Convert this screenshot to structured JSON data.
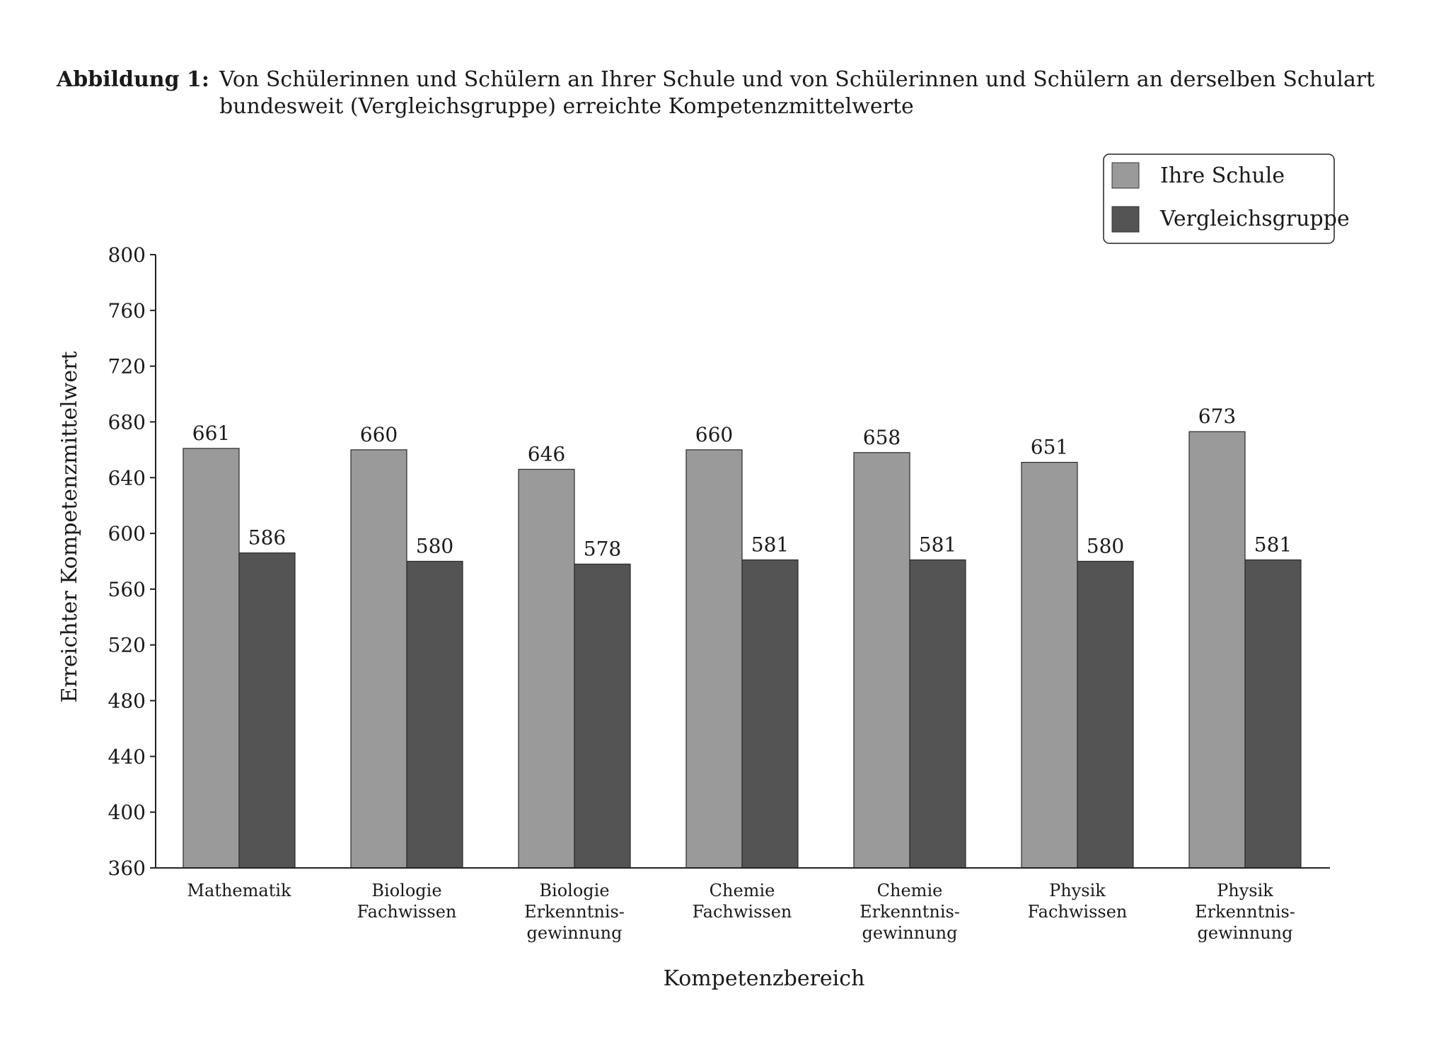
{
  "caption": {
    "label": "Abbildung 1:",
    "text": "Von Schülerinnen und Schülern an Ihrer Schule und von Schülerinnen und Schülern an derselben Schulart bundesweit (Vergleichsgruppe) erreichte Kompetenzmittelwerte"
  },
  "chart_data": {
    "type": "bar",
    "title": "",
    "xlabel": "Kompetenzbereich",
    "ylabel": "Erreichter Kompetenzmittelwert",
    "ylim": [
      360,
      800
    ],
    "yticks": [
      360,
      400,
      440,
      480,
      520,
      560,
      600,
      640,
      680,
      720,
      760,
      800
    ],
    "grid": false,
    "legend_position": "top-right",
    "categories": [
      [
        "Mathematik"
      ],
      [
        "Biologie",
        "Fachwissen"
      ],
      [
        "Biologie",
        "Erkenntnis-",
        "gewinnung"
      ],
      [
        "Chemie",
        "Fachwissen"
      ],
      [
        "Chemie",
        "Erkenntnis-",
        "gewinnung"
      ],
      [
        "Physik",
        "Fachwissen"
      ],
      [
        "Physik",
        "Erkenntnis-",
        "gewinnung"
      ]
    ],
    "series": [
      {
        "name": "Ihre Schule",
        "color": "#9a9a9a",
        "values": [
          661,
          660,
          646,
          660,
          658,
          651,
          673
        ]
      },
      {
        "name": "Vergleichsgruppe",
        "color": "#545454",
        "values": [
          586,
          580,
          578,
          581,
          581,
          580,
          581
        ]
      }
    ]
  }
}
